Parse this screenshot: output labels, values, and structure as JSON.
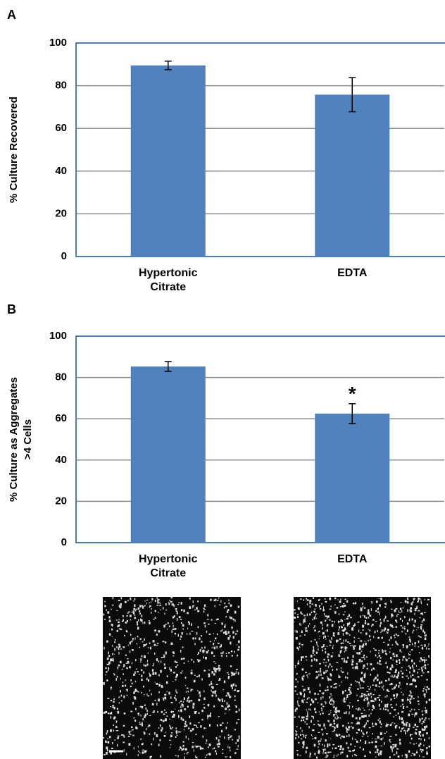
{
  "chart_data": [
    {
      "type": "bar",
      "panel": "A",
      "ylabel": [
        "% Culture Recovered"
      ],
      "categories": [
        "Hypertonic Citrate",
        "EDTA"
      ],
      "values": [
        89.5,
        75.8
      ],
      "errors": [
        2,
        8
      ],
      "color": "#4f81bd",
      "ylim": [
        0,
        100
      ],
      "yticks": [
        0,
        20,
        40,
        60,
        80,
        100
      ],
      "grid": true
    },
    {
      "type": "bar",
      "panel": "B",
      "ylabel": [
        "% Culture as Aggregates",
        ">4 Cells"
      ],
      "categories": [
        "Hypertonic Citrate",
        "EDTA"
      ],
      "values": [
        85.3,
        62.5
      ],
      "errors": [
        2.4,
        4.8
      ],
      "color": "#4f81bd",
      "ylim": [
        0,
        100
      ],
      "yticks": [
        0,
        20,
        40,
        60,
        80,
        100
      ],
      "grid": true,
      "annotations": [
        {
          "text": "*",
          "category": "EDTA"
        }
      ]
    }
  ]
}
